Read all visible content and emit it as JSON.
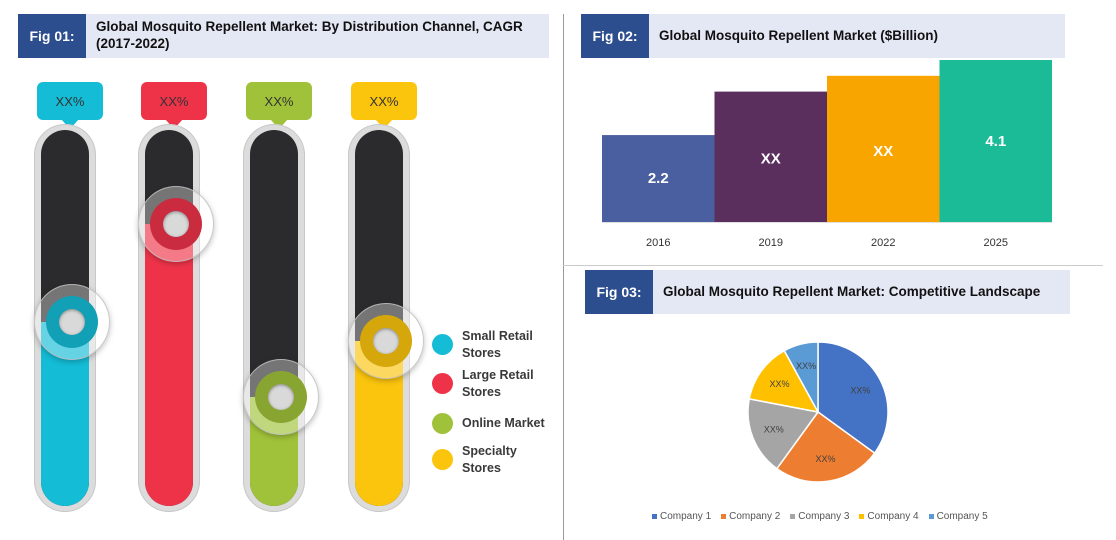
{
  "fig1": {
    "tag": "Fig 01:",
    "title": "Global Mosquito Repellent Market: By Distribution Channel, CAGR (2017-2022)",
    "channels": [
      {
        "label": "XX%",
        "name": "Small Retail Stores",
        "color": "#14bcd6",
        "level": 0.49
      },
      {
        "label": "XX%",
        "name": "Large Retail Stores",
        "color": "#ee3349",
        "level": 0.75
      },
      {
        "label": "XX%",
        "name": "Online Market",
        "color": "#a0c23a",
        "level": 0.29
      },
      {
        "label": "XX%",
        "name": "Specialty Stores",
        "color": "#fbc40d",
        "level": 0.44
      }
    ]
  },
  "fig2": {
    "tag": "Fig 02:",
    "title": "Global Mosquito Repellent Market ($Billion)",
    "chart_data": {
      "type": "bar",
      "title": "Global Mosquito Repellent Market ($Billion)",
      "categories": [
        "2016",
        "2019",
        "2022",
        "2025"
      ],
      "values": [
        2.2,
        3.3,
        3.7,
        4.1
      ],
      "value_labels": [
        "2.2",
        "XX",
        "XX",
        "4.1"
      ],
      "colors": [
        "#4a5f9f",
        "#5a2f5e",
        "#f8a500",
        "#1cbb97"
      ],
      "ylim": [
        0,
        4.1
      ],
      "grid": false
    }
  },
  "fig3": {
    "tag": "Fig 03:",
    "title": "Global Mosquito Repellent Market: Competitive Landscape",
    "chart_data": {
      "type": "pie",
      "title": "Global Mosquito Repellent Market: Competitive Landscape",
      "labels": [
        "Company 1",
        "Company 2",
        "Company 3",
        "Company 4",
        "Company 5"
      ],
      "values": [
        35,
        25,
        18,
        14,
        8
      ],
      "value_labels": [
        "XX%",
        "XX%",
        "XX%",
        "XX%",
        "XX%"
      ],
      "colors": [
        "#4472c4",
        "#ed7d31",
        "#a5a5a5",
        "#ffc000",
        "#5b9bd5"
      ],
      "legend": "bottom"
    }
  }
}
